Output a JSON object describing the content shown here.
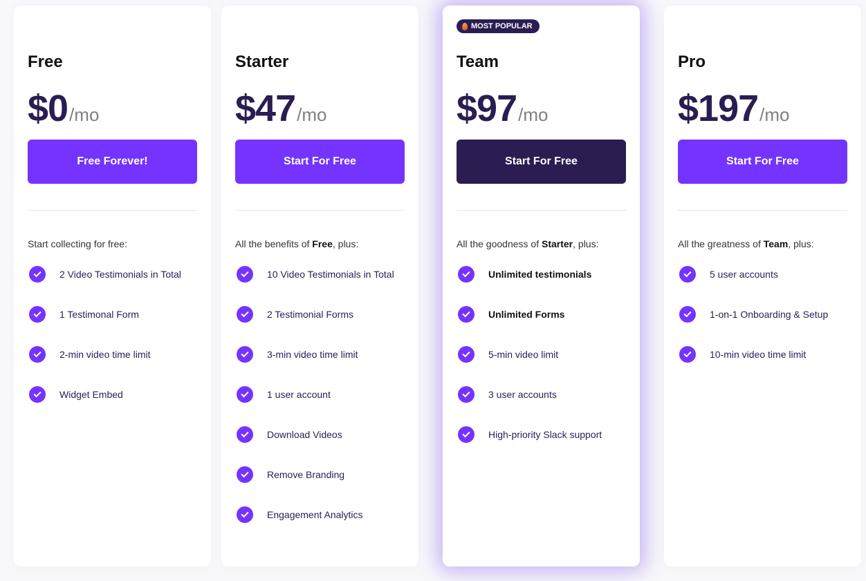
{
  "plans": [
    {
      "name": "Free",
      "price": "$0",
      "period": "/mo",
      "button": "Free Forever!",
      "intro_pre": "Start collecting for free:",
      "intro_bold": "",
      "intro_post": "",
      "features": [
        "2 Video Testimonials in Total",
        "1 Testimonal Form",
        "2-min video time limit",
        "Widget Embed"
      ]
    },
    {
      "name": "Starter",
      "price": "$47",
      "period": "/mo",
      "button": "Start For Free",
      "intro_pre": "All the benefits of ",
      "intro_bold": "Free",
      "intro_post": ", plus:",
      "features": [
        "10 Video Testimonials in Total",
        "2 Testimonial Forms",
        "3-min video time limit",
        "1 user account",
        "Download Videos",
        "Remove Branding",
        "Engagement Analytics"
      ]
    },
    {
      "name": "Team",
      "badge": "MOST POPULAR",
      "price": "$97",
      "period": "/mo",
      "button": "Start For Free",
      "intro_pre": "All the goodness of ",
      "intro_bold": "Starter",
      "intro_post": ", plus:",
      "features": [
        "Unlimited testimonials",
        "Unlimited Forms",
        "5-min video limit",
        "3 user accounts",
        "High-priority Slack support"
      ]
    },
    {
      "name": "Pro",
      "price": "$197",
      "period": "/mo",
      "button": "Start For Free",
      "intro_pre": "All the greatness of ",
      "intro_bold": "Team",
      "intro_post": ", plus:",
      "features": [
        "5 user accounts",
        "1-on-1 Onboarding & Setup",
        "10-min video time limit"
      ]
    }
  ],
  "colors": {
    "accent": "#7533ff",
    "dark": "#2b1d52"
  }
}
